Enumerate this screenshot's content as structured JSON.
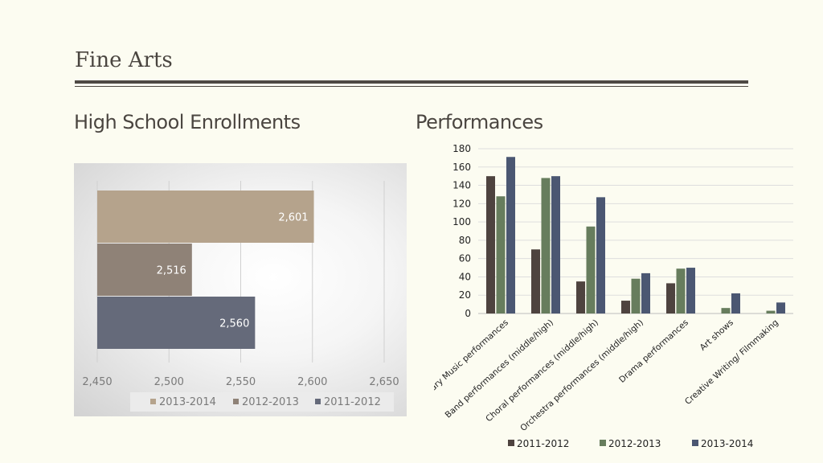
{
  "slide": {
    "title": "Fine Arts"
  },
  "headings": {
    "left": "High School Enrollments",
    "right": "Performances"
  },
  "colors": {
    "background": "#fcfcf1",
    "series_2013_2014_left": "#b5a38c",
    "series_2012_2013_left": "#8f8277",
    "series_2011_2012_left": "#656a7a",
    "series_2011_2012_right": "#4e433f",
    "series_2012_2013_right": "#677d5d",
    "series_2013_2014_right": "#4b5772"
  },
  "chart_data": [
    {
      "type": "bar",
      "orientation": "horizontal",
      "categories": [
        "2013-2014",
        "2012-2013",
        "2011-2012"
      ],
      "values": [
        2601,
        2516,
        2560
      ],
      "data_labels": [
        "2,601",
        "2,516",
        "2,560"
      ],
      "xlim": [
        2450,
        2650
      ],
      "x_ticks": [
        "2,450",
        "2,500",
        "2,550",
        "2,600",
        "2,650"
      ],
      "legend": [
        "2013-2014",
        "2012-2013",
        "2011-2012"
      ],
      "legend_position": "bottom",
      "grid": "vertical"
    },
    {
      "type": "bar",
      "categories": [
        "Elementary Music performances",
        "Band performances (middle/high)",
        "Choral performances (middle/high)",
        "Orchestra performances (middle/high)",
        "Drama performances",
        "Art shows",
        "Creative Writing/ Filmmaking"
      ],
      "series": [
        {
          "name": "2011-2012",
          "values": [
            150,
            70,
            35,
            14,
            33,
            0,
            0
          ]
        },
        {
          "name": "2012-2013",
          "values": [
            128,
            148,
            95,
            38,
            49,
            6,
            3
          ]
        },
        {
          "name": "2013-2014",
          "values": [
            171,
            150,
            127,
            44,
            50,
            22,
            12
          ]
        }
      ],
      "ylim": [
        0,
        180
      ],
      "y_ticks": [
        "0",
        "20",
        "40",
        "60",
        "80",
        "100",
        "120",
        "140",
        "160",
        "180"
      ],
      "legend_position": "bottom",
      "grid": "horizontal"
    }
  ]
}
